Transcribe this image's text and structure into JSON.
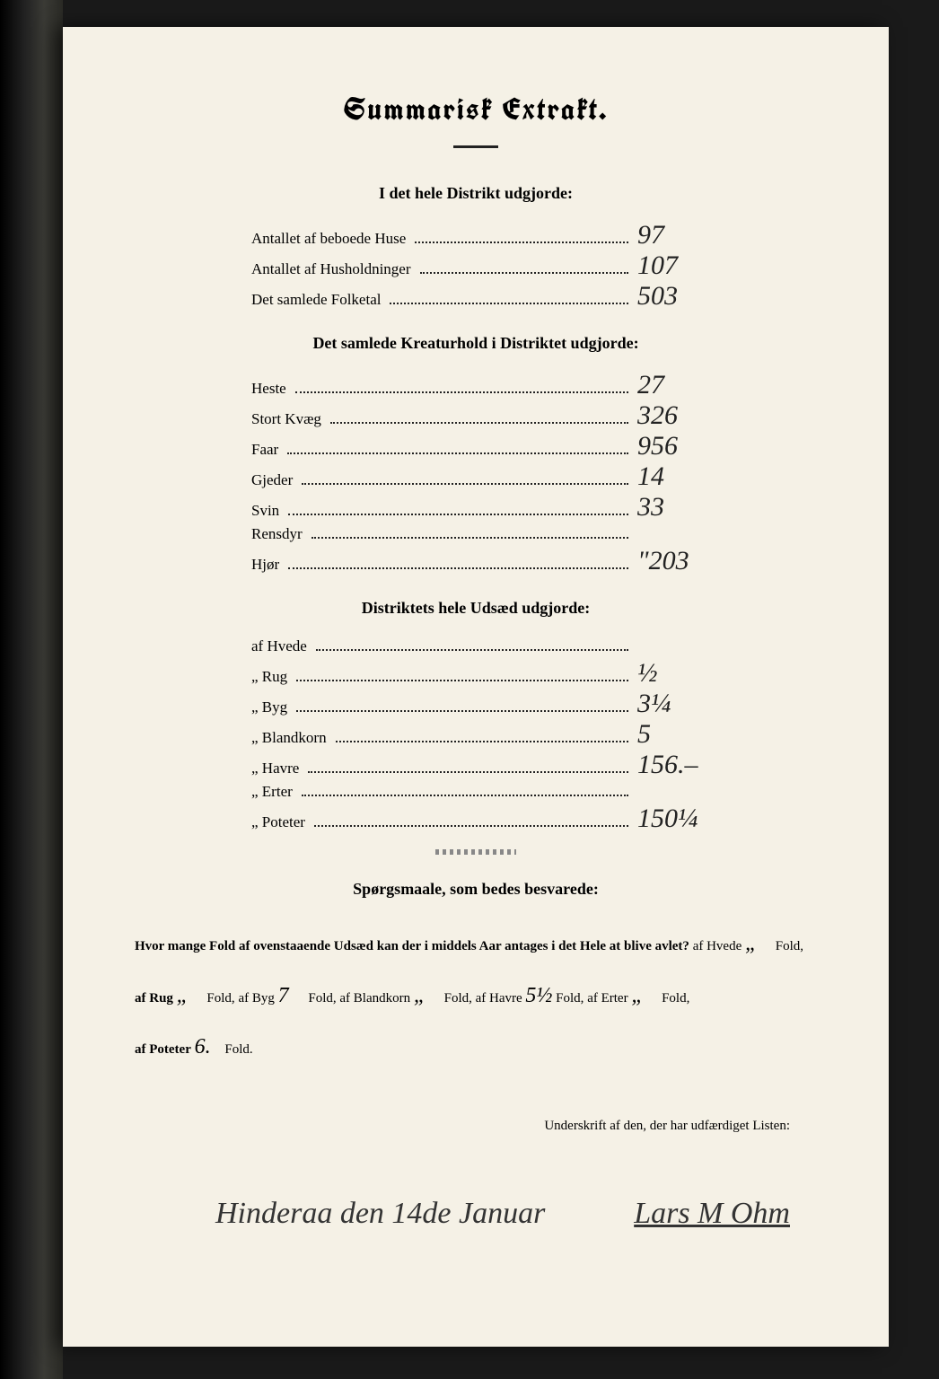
{
  "title": "Summarisk Extrakt.",
  "sections": {
    "district": {
      "heading": "I det hele Distrikt udgjorde:",
      "rows": [
        {
          "label": "Antallet af beboede Huse",
          "value": "97"
        },
        {
          "label": "Antallet af Husholdninger",
          "value": "107"
        },
        {
          "label": "Det samlede Folketal",
          "value": "503"
        }
      ]
    },
    "livestock": {
      "heading": "Det samlede Kreaturhold i Distriktet udgjorde:",
      "rows": [
        {
          "label": "Heste",
          "value": "27"
        },
        {
          "label": "Stort Kvæg",
          "value": "326"
        },
        {
          "label": "Faar",
          "value": "956"
        },
        {
          "label": "Gjeder",
          "value": "14"
        },
        {
          "label": "Svin",
          "value": "33"
        },
        {
          "label": "Rensdyr",
          "value": ""
        },
        {
          "label": "Hjør",
          "value": "\"203"
        }
      ]
    },
    "seed": {
      "heading": "Distriktets hele Udsæd udgjorde:",
      "rows": [
        {
          "label": "af Hvede",
          "value": ""
        },
        {
          "label": "„ Rug",
          "value": "½"
        },
        {
          "label": "„ Byg",
          "value": "3¼"
        },
        {
          "label": "„ Blandkorn",
          "value": "5"
        },
        {
          "label": "„ Havre",
          "value": "156.–"
        },
        {
          "label": "„ Erter",
          "value": ""
        },
        {
          "label": "„ Poteter",
          "value": "150¼"
        }
      ]
    }
  },
  "questions": {
    "heading": "Spørgsmaale, som bedes besvarede:",
    "lead": "Hvor mange Fold af ovenstaaende Udsæd kan der i middels Aar antages i det Hele at blive avlet?",
    "items": [
      {
        "label": "af Hvede",
        "value": "„",
        "tail": "Fold,"
      },
      {
        "label": "af Rug",
        "value": "„",
        "tail": "Fold,"
      },
      {
        "label": "af Byg",
        "value": "7",
        "tail": "Fold,"
      },
      {
        "label": "af Blandkorn",
        "value": "„",
        "tail": "Fold,"
      },
      {
        "label": "af Havre",
        "value": "5½",
        "tail": "Fold,"
      },
      {
        "label": "af Erter",
        "value": "„",
        "tail": "Fold,"
      },
      {
        "label": "af Poteter",
        "value": "6.",
        "tail": "Fold."
      }
    ]
  },
  "signature": {
    "label": "Underskrift af den, der har udfærdiget Listen:",
    "place_date": "Hinderaa den 14de Januar",
    "name": "Lars M Ohm"
  }
}
